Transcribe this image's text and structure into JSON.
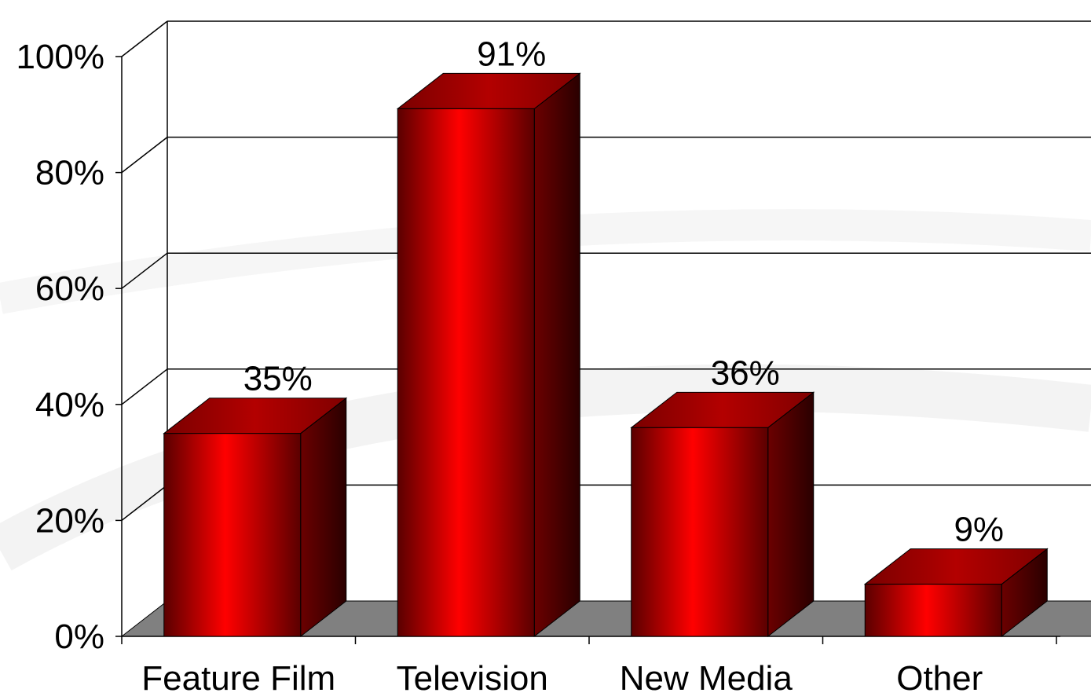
{
  "chart_data": {
    "type": "bar",
    "categories": [
      "Feature Film",
      "Television",
      "New Media",
      "Other"
    ],
    "values": [
      35,
      91,
      36,
      9
    ],
    "data_labels": [
      "35%",
      "91%",
      "36%",
      "9%"
    ],
    "ylim": [
      0,
      100
    ],
    "yticks": [
      0,
      20,
      40,
      60,
      80,
      100
    ],
    "ytick_labels": [
      "0%",
      "20%",
      "40%",
      "60%",
      "80%",
      "100%"
    ],
    "grid": true,
    "style": "3d",
    "colors": {
      "bar_front_light": "#ff0000",
      "bar_front_dark": "#5a0000",
      "bar_side": "#6b0000",
      "bar_top": "#b30000",
      "floor": "#808080",
      "grid": "#000000"
    }
  }
}
